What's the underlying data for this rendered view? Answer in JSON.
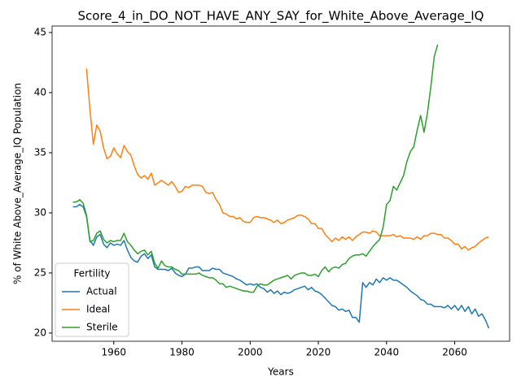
{
  "chart_data": {
    "type": "line",
    "title": "Score_4_in_DO_NOT_HAVE_ANY_SAY_for_White_Above_Average_IQ",
    "xlabel": "Years",
    "ylabel": "% of White Above_Average_IQ Population",
    "legend_title": "Fertility",
    "legend": "lower left",
    "xlim": [
      1941.9,
      2076.1
    ],
    "ylim": [
      19.32,
      45.54
    ],
    "xticks": [
      1960,
      1980,
      2000,
      2020,
      2040,
      2060
    ],
    "yticks": [
      20,
      25,
      30,
      35,
      40,
      45
    ],
    "grid": false,
    "x": [
      1948,
      1949,
      1950,
      1951,
      1952,
      1953,
      1954,
      1955,
      1956,
      1957,
      1958,
      1959,
      1960,
      1961,
      1962,
      1963,
      1964,
      1965,
      1966,
      1967,
      1968,
      1969,
      1970,
      1971,
      1972,
      1973,
      1974,
      1975,
      1976,
      1977,
      1978,
      1979,
      1980,
      1981,
      1982,
      1983,
      1984,
      1985,
      1986,
      1987,
      1988,
      1989,
      1990,
      1991,
      1992,
      1993,
      1994,
      1995,
      1996,
      1997,
      1998,
      1999,
      2000,
      2001,
      2002,
      2003,
      2004,
      2005,
      2006,
      2007,
      2008,
      2009,
      2010,
      2011,
      2012,
      2013,
      2014,
      2015,
      2016,
      2017,
      2018,
      2019,
      2020,
      2021,
      2022,
      2023,
      2024,
      2025,
      2026,
      2027,
      2028,
      2029,
      2030,
      2031,
      2032,
      2033,
      2034,
      2035,
      2036,
      2037,
      2038,
      2039,
      2040,
      2041,
      2042,
      2043,
      2044,
      2045,
      2046,
      2047,
      2048,
      2049,
      2050,
      2051,
      2052,
      2053,
      2054,
      2055,
      2056,
      2057,
      2058,
      2059,
      2060,
      2061,
      2062,
      2063,
      2064,
      2065,
      2066,
      2067,
      2068,
      2069,
      2070
    ],
    "series": [
      {
        "name": "Actual",
        "color": "#1f77b4",
        "values": [
          30.5,
          30.5,
          30.7,
          30.5,
          29.7,
          27.7,
          27.3,
          28.0,
          28.2,
          27.4,
          27.1,
          27.5,
          27.3,
          27.4,
          27.3,
          27.7,
          26.9,
          26.3,
          26.0,
          25.9,
          26.4,
          26.6,
          26.2,
          26.5,
          25.5,
          25.3,
          25.3,
          25.3,
          25.2,
          25.4,
          25.0,
          24.8,
          24.7,
          24.9,
          25.4,
          25.4,
          25.5,
          25.5,
          25.2,
          25.2,
          25.2,
          25.4,
          25.3,
          25.3,
          25.0,
          24.9,
          24.8,
          24.7,
          24.5,
          24.4,
          24.2,
          24.0,
          24.1,
          24.0,
          24.1,
          23.8,
          23.7,
          23.4,
          23.6,
          23.3,
          23.5,
          23.2,
          23.4,
          23.3,
          23.4,
          23.6,
          23.7,
          23.8,
          23.9,
          23.6,
          23.8,
          23.5,
          23.4,
          23.2,
          22.9,
          22.6,
          22.3,
          22.2,
          21.9,
          22.0,
          21.8,
          21.9,
          21.3,
          21.3,
          20.9,
          24.2,
          23.8,
          24.2,
          24.0,
          24.5,
          24.2,
          24.6,
          24.4,
          24.6,
          24.4,
          24.4,
          24.2,
          24.0,
          23.8,
          23.5,
          23.3,
          23.1,
          22.8,
          22.7,
          22.4,
          22.4,
          22.2,
          22.2,
          22.2,
          22.1,
          22.3,
          22.0,
          22.3,
          21.9,
          22.3,
          21.8,
          22.2,
          21.6,
          22.0,
          21.4,
          21.6,
          21.1,
          20.4
        ]
      },
      {
        "name": "Ideal",
        "color": "#ff7f0e",
        "values": [
          null,
          null,
          null,
          null,
          42.0,
          38.6,
          35.7,
          37.3,
          36.8,
          35.4,
          34.5,
          34.7,
          35.4,
          34.9,
          34.6,
          35.6,
          35.1,
          34.8,
          33.9,
          33.2,
          32.9,
          33.1,
          32.8,
          33.3,
          32.3,
          32.5,
          32.7,
          32.5,
          32.3,
          32.6,
          32.2,
          31.7,
          31.8,
          32.2,
          32.1,
          32.3,
          32.3,
          32.3,
          32.2,
          31.7,
          31.6,
          31.7,
          31.1,
          30.7,
          30.0,
          29.9,
          29.7,
          29.7,
          29.5,
          29.6,
          29.3,
          29.2,
          29.2,
          29.6,
          29.7,
          29.6,
          29.6,
          29.5,
          29.4,
          29.2,
          29.4,
          29.1,
          29.2,
          29.4,
          29.5,
          29.6,
          29.8,
          29.8,
          29.7,
          29.5,
          29.1,
          29.1,
          28.7,
          28.7,
          28.2,
          27.9,
          27.6,
          27.9,
          27.7,
          28.0,
          27.8,
          28.0,
          27.7,
          28.0,
          28.2,
          28.4,
          28.4,
          28.3,
          28.5,
          28.4,
          28.1,
          28.1,
          28.1,
          28.1,
          28.2,
          28.0,
          28.1,
          27.9,
          27.9,
          27.9,
          27.8,
          28.0,
          27.8,
          28.1,
          28.1,
          28.3,
          28.3,
          28.2,
          28.2,
          27.9,
          27.9,
          27.7,
          27.4,
          27.4,
          27.0,
          27.2,
          26.9,
          27.1,
          27.2,
          27.5,
          27.7,
          27.9,
          28.0
        ]
      },
      {
        "name": "Sterile",
        "color": "#2ca02c",
        "values": [
          30.9,
          30.9,
          31.1,
          30.8,
          29.8,
          27.6,
          27.7,
          28.3,
          28.5,
          27.8,
          27.5,
          27.7,
          27.6,
          27.7,
          27.7,
          28.3,
          27.6,
          27.3,
          26.9,
          26.6,
          26.8,
          26.9,
          26.5,
          26.8,
          25.8,
          25.4,
          26.0,
          25.6,
          25.5,
          25.5,
          25.3,
          25.2,
          24.9,
          24.9,
          24.9,
          24.9,
          24.9,
          25.0,
          24.8,
          24.7,
          24.6,
          24.6,
          24.4,
          24.1,
          24.1,
          23.8,
          23.9,
          23.8,
          23.7,
          23.6,
          23.5,
          23.5,
          23.4,
          23.4,
          23.9,
          24.1,
          24.0,
          24.0,
          24.2,
          24.4,
          24.5,
          24.6,
          24.7,
          24.8,
          24.5,
          24.8,
          24.9,
          25.0,
          25.0,
          24.8,
          24.8,
          24.9,
          24.7,
          25.2,
          25.5,
          25.1,
          25.4,
          25.5,
          25.4,
          25.7,
          25.8,
          26.2,
          26.4,
          26.5,
          26.5,
          26.6,
          26.4,
          26.8,
          27.2,
          27.5,
          27.8,
          28.8,
          30.7,
          31.0,
          32.2,
          31.9,
          32.5,
          33.1,
          34.3,
          35.1,
          35.5,
          36.9,
          38.1,
          36.7,
          38.3,
          40.5,
          43.0,
          44.0,
          null,
          null,
          null,
          null,
          null,
          null,
          null,
          null,
          null,
          null,
          null,
          null,
          null,
          null,
          null
        ]
      }
    ]
  }
}
